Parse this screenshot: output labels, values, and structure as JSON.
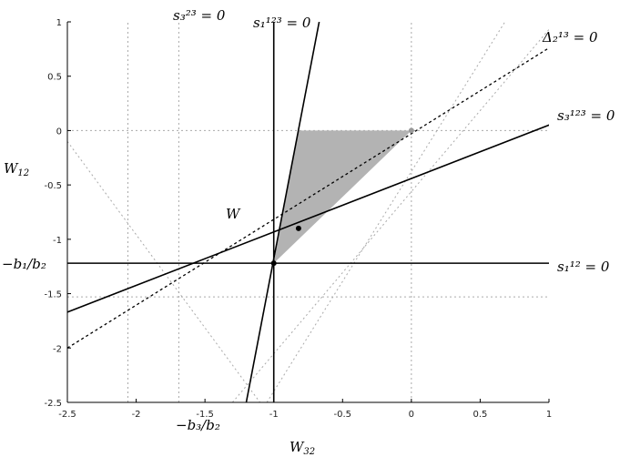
{
  "chart_data": {
    "type": "line",
    "title": "",
    "xlim": [
      -2.5,
      1
    ],
    "ylim": [
      -2.5,
      1
    ],
    "xticks": [
      "-2.5",
      "-2",
      "-1.5",
      "-1",
      "-0.5",
      "0",
      "0.5",
      "1"
    ],
    "yticks": [
      "1",
      "0.5",
      "0",
      "-0.5",
      "-1",
      "-1.5",
      "-2",
      "-2.5"
    ],
    "xlabel": {
      "base": "W",
      "sub": "32"
    },
    "ylabel": {
      "base": "W",
      "sub": "12"
    },
    "special_labels": {
      "y": {
        "text": "−b₁/b₂",
        "value": -1.22
      },
      "x": {
        "text": "−b₃/b₂",
        "value": -1.0
      }
    },
    "point": {
      "label": "W",
      "x": -0.82,
      "y": -0.9
    },
    "intersection": {
      "x": -1.0,
      "y": -1.22
    },
    "region": {
      "fill": "#b3b3b3",
      "vertices": [
        [
          -1.0,
          -1.22
        ],
        [
          -0.82,
          0.0
        ],
        [
          0.0,
          0.0
        ]
      ]
    },
    "series": [
      {
        "name": "s₁¹² = 0",
        "style": "solid",
        "points": [
          [
            -2.5,
            -1.22
          ],
          [
            1.0,
            -1.22
          ]
        ]
      },
      {
        "name": "s₃²³ = 0",
        "style": "solid",
        "points": [
          [
            -1.0,
            -2.5
          ],
          [
            -1.0,
            1.0
          ]
        ]
      },
      {
        "name": "s₁¹²³ = 0",
        "style": "solid",
        "points": [
          [
            -1.2,
            -2.5
          ],
          [
            -0.67,
            1.0
          ]
        ]
      },
      {
        "name": "s₃¹²³ = 0",
        "style": "solid",
        "points": [
          [
            -2.5,
            -1.67
          ],
          [
            1.1,
            0.1
          ]
        ]
      },
      {
        "name": "Δ₂¹³ = 0",
        "style": "dotted",
        "points": [
          [
            -2.5,
            -2.0
          ],
          [
            1.0,
            0.76
          ]
        ]
      }
    ],
    "guides": [
      {
        "style": "gray-dotted",
        "points": [
          [
            -2.5,
            0.0
          ],
          [
            1.0,
            0.0
          ]
        ]
      },
      {
        "style": "gray-dotted",
        "points": [
          [
            -2.5,
            -1.53
          ],
          [
            1.0,
            -1.53
          ]
        ]
      },
      {
        "style": "gray-dotted",
        "points": [
          [
            0.0,
            -2.5
          ],
          [
            0.0,
            1.0
          ]
        ]
      },
      {
        "style": "gray-dotted",
        "points": [
          [
            -2.06,
            -2.5
          ],
          [
            -2.06,
            1.0
          ]
        ]
      },
      {
        "style": "gray-dotted",
        "points": [
          [
            -1.69,
            -2.5
          ],
          [
            -1.69,
            1.0
          ]
        ]
      },
      {
        "style": "gray-dotted",
        "points": [
          [
            -2.5,
            -0.1
          ],
          [
            -1.1,
            -2.5
          ]
        ]
      },
      {
        "style": "gray-dotted",
        "points": [
          [
            -1.3,
            -2.5
          ],
          [
            1.0,
            0.93
          ]
        ]
      },
      {
        "style": "gray-dotted",
        "points": [
          [
            -1.05,
            -2.5
          ],
          [
            0.68,
            1.0
          ]
        ]
      }
    ],
    "colors": {
      "line": "#000000",
      "guide": "#aaaaaa",
      "region": "#b3b3b3",
      "marker": "#999999"
    }
  }
}
